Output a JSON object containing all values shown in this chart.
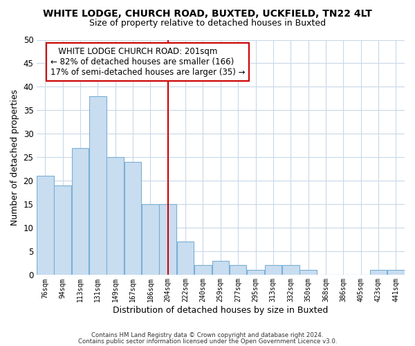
{
  "title": "WHITE LODGE, CHURCH ROAD, BUXTED, UCKFIELD, TN22 4LT",
  "subtitle": "Size of property relative to detached houses in Buxted",
  "xlabel": "Distribution of detached houses by size in Buxted",
  "ylabel": "Number of detached properties",
  "bar_labels": [
    "76sqm",
    "94sqm",
    "113sqm",
    "131sqm",
    "149sqm",
    "167sqm",
    "186sqm",
    "204sqm",
    "222sqm",
    "240sqm",
    "259sqm",
    "277sqm",
    "295sqm",
    "313sqm",
    "332sqm",
    "350sqm",
    "368sqm",
    "386sqm",
    "405sqm",
    "423sqm",
    "441sqm"
  ],
  "bar_values": [
    21,
    19,
    27,
    38,
    25,
    24,
    15,
    15,
    7,
    2,
    3,
    2,
    1,
    2,
    2,
    1,
    0,
    0,
    0,
    1,
    1
  ],
  "bar_color": "#c8ddf0",
  "bar_edge_color": "#7bafd4",
  "vline_x_index": 7,
  "vline_color": "#cc0000",
  "annotation_title": "WHITE LODGE CHURCH ROAD: 201sqm",
  "annotation_line1": "← 82% of detached houses are smaller (166)",
  "annotation_line2": "17% of semi-detached houses are larger (35) →",
  "annotation_box_color": "#ffffff",
  "annotation_box_edge": "#cc0000",
  "ylim": [
    0,
    50
  ],
  "yticks": [
    0,
    5,
    10,
    15,
    20,
    25,
    30,
    35,
    40,
    45,
    50
  ],
  "grid_color": "#c8d8e8",
  "footer_line1": "Contains HM Land Registry data © Crown copyright and database right 2024.",
  "footer_line2": "Contains public sector information licensed under the Open Government Licence v3.0.",
  "bg_color": "#ffffff"
}
